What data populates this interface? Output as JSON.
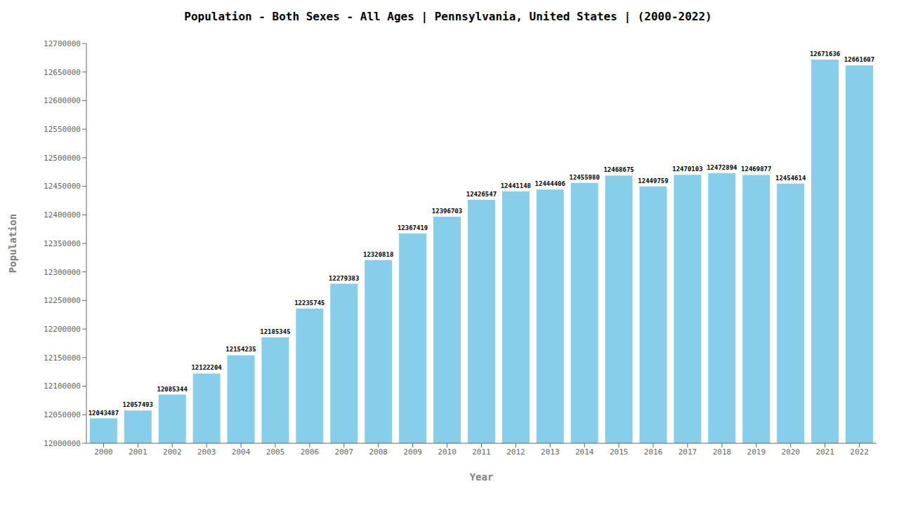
{
  "chart_data": {
    "type": "bar",
    "title": "Population - Both Sexes - All Ages | Pennsylvania, United States |  (2000-2022)",
    "x_label": "Year",
    "y_label": "Population",
    "categories": [
      "2000",
      "2001",
      "2002",
      "2003",
      "2004",
      "2005",
      "2006",
      "2007",
      "2008",
      "2009",
      "2010",
      "2011",
      "2012",
      "2013",
      "2014",
      "2015",
      "2016",
      "2017",
      "2018",
      "2019",
      "2020",
      "2021",
      "2022"
    ],
    "values": [
      12043487,
      12057493,
      12085344,
      12122204,
      12154235,
      12185345,
      12235745,
      12279383,
      12320818,
      12367419,
      12396703,
      12426547,
      12441148,
      12444406,
      12455980,
      12468675,
      12449759,
      12470103,
      12472894,
      12469877,
      12454614,
      12671636,
      12661607
    ],
    "color": "#87CEEB",
    "ylim": [
      12000000,
      12700000
    ],
    "yticks": [
      12000000,
      12050000,
      12100000,
      12150000,
      12200000,
      12250000,
      12300000,
      12350000,
      12400000,
      12450000,
      12500000,
      12550000,
      12600000,
      12650000,
      12700000
    ],
    "grid": false,
    "data_labels": true
  }
}
